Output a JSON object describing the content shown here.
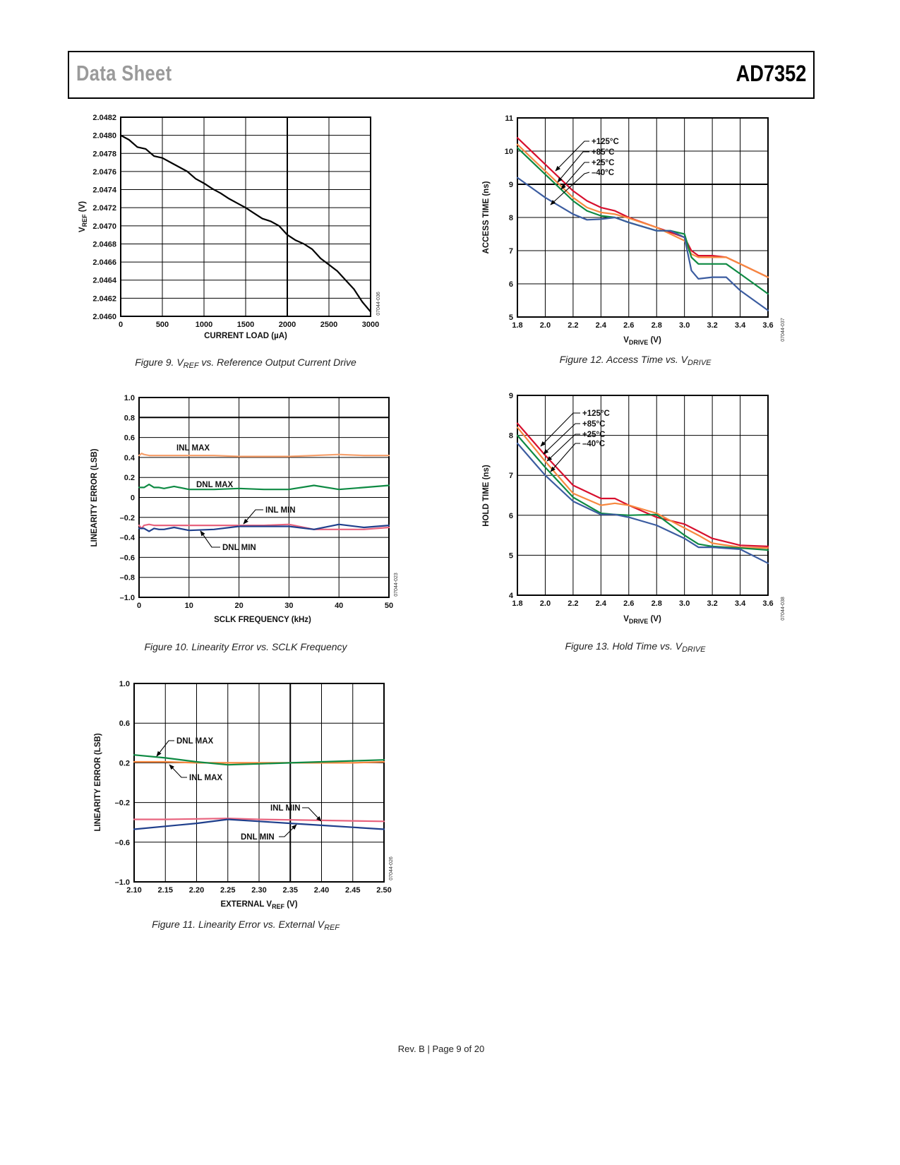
{
  "header": {
    "left": "Data Sheet",
    "right": "AD7352"
  },
  "footer": {
    "text": "Rev. B | Page 9 of 20"
  },
  "colors": {
    "red": "#d7102e",
    "orange": "#f7883f",
    "green": "#0e8a43",
    "blue": "#3b5ca0",
    "inl_max": "#f6a06c",
    "inl_min": "#e8637e",
    "dnl_min": "#1f3f8c",
    "black": "#000000"
  },
  "chart_data": [
    {
      "id": "fig9",
      "type": "line",
      "caption": [
        {
          "t": "Figure 9. V"
        },
        {
          "t": "REF",
          "sub": true
        },
        {
          "t": " vs. Reference Output Current Drive"
        }
      ],
      "xlabel": [
        {
          "t": "CURRENT LOAD (µA)"
        }
      ],
      "ylabel": [
        {
          "t": "V"
        },
        {
          "t": "REF",
          "sub": true
        },
        {
          "t": " (V)"
        }
      ],
      "code": "07044-036",
      "xlim": [
        0,
        3000
      ],
      "ylim": [
        2.046,
        2.0482
      ],
      "xticks": [
        "0",
        "500",
        "1000",
        "1500",
        "2000",
        "2500",
        "3000"
      ],
      "yticks": [
        "2.0460",
        "2.0462",
        "2.0464",
        "2.0466",
        "2.0468",
        "2.0470",
        "2.0472",
        "2.0474",
        "2.0476",
        "2.0478",
        "2.0480",
        "2.0482"
      ],
      "grid": true,
      "series": [
        {
          "color": "black",
          "x": [
            0,
            100,
            200,
            300,
            400,
            500,
            600,
            700,
            800,
            900,
            1000,
            1100,
            1200,
            1300,
            1400,
            1500,
            1600,
            1700,
            1800,
            1900,
            2000,
            2100,
            2200,
            2300,
            2400,
            2500,
            2600,
            2700,
            2800,
            2900,
            3000
          ],
          "y": [
            2.048,
            2.04795,
            2.04787,
            2.04785,
            2.04777,
            2.04775,
            2.0477,
            2.04765,
            2.0476,
            2.04752,
            2.04747,
            2.04741,
            2.04736,
            2.0473,
            2.04725,
            2.0472,
            2.04714,
            2.04708,
            2.04705,
            2.047,
            2.0469,
            2.04684,
            2.0468,
            2.04674,
            2.04664,
            2.04657,
            2.0465,
            2.0464,
            2.0463,
            2.04616,
            2.04605
          ]
        }
      ]
    },
    {
      "id": "fig12",
      "type": "line",
      "caption": [
        {
          "t": "Figure 12. Access Time vs. V"
        },
        {
          "t": "DRIVE",
          "sub": true
        }
      ],
      "xlabel": [
        {
          "t": "V"
        },
        {
          "t": "DRIVE",
          "sub": true
        },
        {
          "t": " (V)"
        }
      ],
      "ylabel": [
        {
          "t": "ACCESS TIME (ns)"
        }
      ],
      "code": "07044-037",
      "xlim": [
        1.8,
        3.6
      ],
      "ylim": [
        5,
        11
      ],
      "xticks": [
        "1.8",
        "2.0",
        "2.2",
        "2.4",
        "2.6",
        "2.8",
        "3.0",
        "3.2",
        "3.4",
        "3.6"
      ],
      "yticks": [
        "5",
        "6",
        "7",
        "8",
        "9",
        "10",
        "11"
      ],
      "grid": true,
      "series": [
        {
          "name": "+125°C",
          "color": "red",
          "x": [
            1.8,
            2.0,
            2.2,
            2.3,
            2.4,
            2.5,
            2.6,
            2.8,
            2.9,
            3.0,
            3.05,
            3.1,
            3.2,
            3.3,
            3.4,
            3.6
          ],
          "y": [
            10.4,
            9.6,
            8.8,
            8.5,
            8.3,
            8.2,
            8.0,
            7.7,
            7.55,
            7.4,
            7.0,
            6.85,
            6.85,
            6.8,
            6.6,
            6.2
          ]
        },
        {
          "name": "+85°C",
          "color": "orange",
          "x": [
            1.8,
            2.0,
            2.2,
            2.3,
            2.4,
            2.5,
            2.6,
            2.8,
            2.9,
            3.0,
            3.05,
            3.1,
            3.2,
            3.3,
            3.4,
            3.6
          ],
          "y": [
            10.2,
            9.4,
            8.6,
            8.3,
            8.15,
            8.1,
            7.98,
            7.7,
            7.5,
            7.3,
            6.9,
            6.8,
            6.8,
            6.8,
            6.6,
            6.2
          ]
        },
        {
          "name": "+25°C",
          "color": "green",
          "x": [
            1.8,
            2.0,
            2.2,
            2.3,
            2.4,
            2.5,
            2.6,
            2.8,
            2.9,
            3.0,
            3.05,
            3.1,
            3.2,
            3.3,
            3.4,
            3.6
          ],
          "y": [
            10.1,
            9.3,
            8.5,
            8.2,
            8.05,
            8.0,
            7.85,
            7.6,
            7.6,
            7.5,
            6.8,
            6.6,
            6.6,
            6.6,
            6.3,
            5.7
          ]
        },
        {
          "name": "–40°C",
          "color": "blue",
          "x": [
            1.8,
            2.0,
            2.2,
            2.3,
            2.4,
            2.5,
            2.6,
            2.8,
            2.9,
            3.0,
            3.05,
            3.1,
            3.2,
            3.3,
            3.4,
            3.6
          ],
          "y": [
            9.2,
            8.6,
            8.1,
            7.93,
            7.95,
            8.0,
            7.85,
            7.6,
            7.6,
            7.4,
            6.4,
            6.15,
            6.2,
            6.2,
            5.8,
            5.2
          ]
        }
      ]
    },
    {
      "id": "fig10",
      "type": "line",
      "caption": [
        {
          "t": "Figure 10. Linearity Error vs. SCLK Frequency"
        }
      ],
      "xlabel": [
        {
          "t": "SCLK FREQUENCY (kHz)"
        }
      ],
      "ylabel": [
        {
          "t": "LINEARITY ERROR (LSB)"
        }
      ],
      "code": "07044-023",
      "xlim": [
        0,
        50
      ],
      "ylim": [
        -1.0,
        1.0
      ],
      "xticks": [
        "0",
        "10",
        "20",
        "30",
        "40",
        "50"
      ],
      "yticks": [
        "–1.0",
        "–0.8",
        "–0.6",
        "–0.4",
        "–0.2",
        "0",
        "0.2",
        "0.4",
        "0.6",
        "0.8",
        "1.0"
      ],
      "grid": true,
      "series": [
        {
          "name": "INL MAX",
          "color": "inl_max",
          "x": [
            0,
            0.5,
            1,
            2,
            5,
            10,
            15,
            20,
            25,
            30,
            35,
            40,
            45,
            50
          ],
          "y": [
            0.42,
            0.44,
            0.43,
            0.42,
            0.42,
            0.42,
            0.42,
            0.41,
            0.41,
            0.41,
            0.42,
            0.43,
            0.42,
            0.42
          ]
        },
        {
          "name": "DNL MAX",
          "color": "green",
          "x": [
            0,
            1,
            2,
            3,
            4,
            5,
            7,
            10,
            15,
            20,
            25,
            30,
            35,
            40,
            45,
            50
          ],
          "y": [
            0.1,
            0.1,
            0.13,
            0.1,
            0.1,
            0.09,
            0.11,
            0.08,
            0.08,
            0.09,
            0.08,
            0.08,
            0.12,
            0.08,
            0.1,
            0.12
          ]
        },
        {
          "name": "INL MIN",
          "color": "inl_min",
          "x": [
            0,
            0.5,
            1,
            2,
            3,
            5,
            7,
            10,
            15,
            20,
            25,
            30,
            35,
            40,
            45,
            50
          ],
          "y": [
            -0.28,
            -0.31,
            -0.28,
            -0.27,
            -0.28,
            -0.28,
            -0.28,
            -0.28,
            -0.28,
            -0.28,
            -0.28,
            -0.27,
            -0.32,
            -0.32,
            -0.32,
            -0.3
          ]
        },
        {
          "name": "DNL MIN",
          "color": "dnl_min",
          "x": [
            0,
            1,
            2,
            3,
            4,
            5,
            7,
            10,
            15,
            20,
            25,
            30,
            35,
            40,
            45,
            50
          ],
          "y": [
            -0.31,
            -0.31,
            -0.34,
            -0.31,
            -0.32,
            -0.32,
            -0.3,
            -0.33,
            -0.32,
            -0.29,
            -0.29,
            -0.29,
            -0.32,
            -0.27,
            -0.3,
            -0.28
          ]
        }
      ]
    },
    {
      "id": "fig13",
      "type": "line",
      "caption": [
        {
          "t": "Figure 13. Hold Time vs. V"
        },
        {
          "t": "DRIVE",
          "sub": true
        }
      ],
      "xlabel": [
        {
          "t": "V"
        },
        {
          "t": "DRIVE",
          "sub": true
        },
        {
          "t": " (V)"
        }
      ],
      "ylabel": [
        {
          "t": "HOLD TIME (ns)"
        }
      ],
      "code": "07044-038",
      "xlim": [
        1.8,
        3.6
      ],
      "ylim": [
        4,
        9
      ],
      "xticks": [
        "1.8",
        "2.0",
        "2.2",
        "2.4",
        "2.6",
        "2.8",
        "3.0",
        "3.2",
        "3.4",
        "3.6"
      ],
      "yticks": [
        "4",
        "5",
        "6",
        "7",
        "8",
        "9"
      ],
      "grid": true,
      "series": [
        {
          "name": "+125°C",
          "color": "red",
          "x": [
            1.8,
            2.0,
            2.2,
            2.4,
            2.5,
            2.6,
            2.8,
            3.0,
            3.1,
            3.2,
            3.4,
            3.6
          ],
          "y": [
            8.3,
            7.5,
            6.75,
            6.42,
            6.42,
            6.25,
            5.95,
            5.78,
            5.6,
            5.42,
            5.25,
            5.22
          ]
        },
        {
          "name": "+85°C",
          "color": "orange",
          "x": [
            1.8,
            2.0,
            2.2,
            2.4,
            2.5,
            2.6,
            2.8,
            3.0,
            3.1,
            3.2,
            3.4,
            3.6
          ],
          "y": [
            8.2,
            7.35,
            6.55,
            6.25,
            6.3,
            6.25,
            6.05,
            5.68,
            5.5,
            5.3,
            5.2,
            5.18
          ]
        },
        {
          "name": "+25°C",
          "color": "green",
          "x": [
            1.8,
            2.0,
            2.2,
            2.4,
            2.5,
            2.6,
            2.8,
            3.0,
            3.1,
            3.2,
            3.4,
            3.6
          ],
          "y": [
            8.0,
            7.2,
            6.45,
            6.05,
            6.02,
            6.0,
            6.02,
            5.5,
            5.28,
            5.22,
            5.18,
            5.13
          ]
        },
        {
          "name": "–40°C",
          "color": "blue",
          "x": [
            1.8,
            2.0,
            2.2,
            2.4,
            2.5,
            2.6,
            2.8,
            3.0,
            3.1,
            3.2,
            3.4,
            3.6
          ],
          "y": [
            7.8,
            7.0,
            6.35,
            6.02,
            6.02,
            5.95,
            5.75,
            5.42,
            5.2,
            5.2,
            5.15,
            4.8
          ]
        }
      ]
    },
    {
      "id": "fig11",
      "type": "line",
      "caption": [
        {
          "t": "Figure 11. Linearity Error vs. External V"
        },
        {
          "t": "REF",
          "sub": true
        }
      ],
      "xlabel": [
        {
          "t": "EXTERNAL V"
        },
        {
          "t": "REF",
          "sub": true
        },
        {
          "t": " (V)"
        }
      ],
      "ylabel": [
        {
          "t": "LINEARITY ERROR (LSB)"
        }
      ],
      "code": "07044-026",
      "xlim": [
        2.1,
        2.5
      ],
      "ylim": [
        -1.0,
        1.0
      ],
      "xticks": [
        "2.10",
        "2.15",
        "2.20",
        "2.25",
        "2.30",
        "2.35",
        "2.40",
        "2.45",
        "2.50"
      ],
      "yticks": [
        "–1.0",
        "–0.6",
        "–0.2",
        "0.2",
        "0.6",
        "1.0"
      ],
      "grid": true,
      "series": [
        {
          "name": "INL MAX",
          "color": "orange",
          "x": [
            2.1,
            2.15,
            2.2,
            2.25,
            2.3,
            2.35,
            2.4,
            2.45,
            2.5
          ],
          "y": [
            0.21,
            0.21,
            0.2,
            0.2,
            0.2,
            0.2,
            0.2,
            0.2,
            0.21
          ]
        },
        {
          "name": "DNL MAX",
          "color": "green",
          "x": [
            2.1,
            2.15,
            2.2,
            2.25,
            2.3,
            2.35,
            2.4,
            2.45,
            2.5
          ],
          "y": [
            0.28,
            0.25,
            0.21,
            0.18,
            0.19,
            0.2,
            0.21,
            0.22,
            0.23
          ]
        },
        {
          "name": "INL MIN",
          "color": "inl_min",
          "x": [
            2.1,
            2.15,
            2.2,
            2.25,
            2.3,
            2.35,
            2.4,
            2.45,
            2.5
          ],
          "y": [
            -0.37,
            -0.37,
            -0.365,
            -0.36,
            -0.37,
            -0.375,
            -0.38,
            -0.385,
            -0.39
          ]
        },
        {
          "name": "DNL MIN",
          "color": "dnl_min",
          "x": [
            2.1,
            2.15,
            2.2,
            2.25,
            2.3,
            2.35,
            2.4,
            2.45,
            2.5
          ],
          "y": [
            -0.47,
            -0.44,
            -0.41,
            -0.37,
            -0.39,
            -0.41,
            -0.43,
            -0.45,
            -0.47
          ]
        }
      ]
    }
  ]
}
